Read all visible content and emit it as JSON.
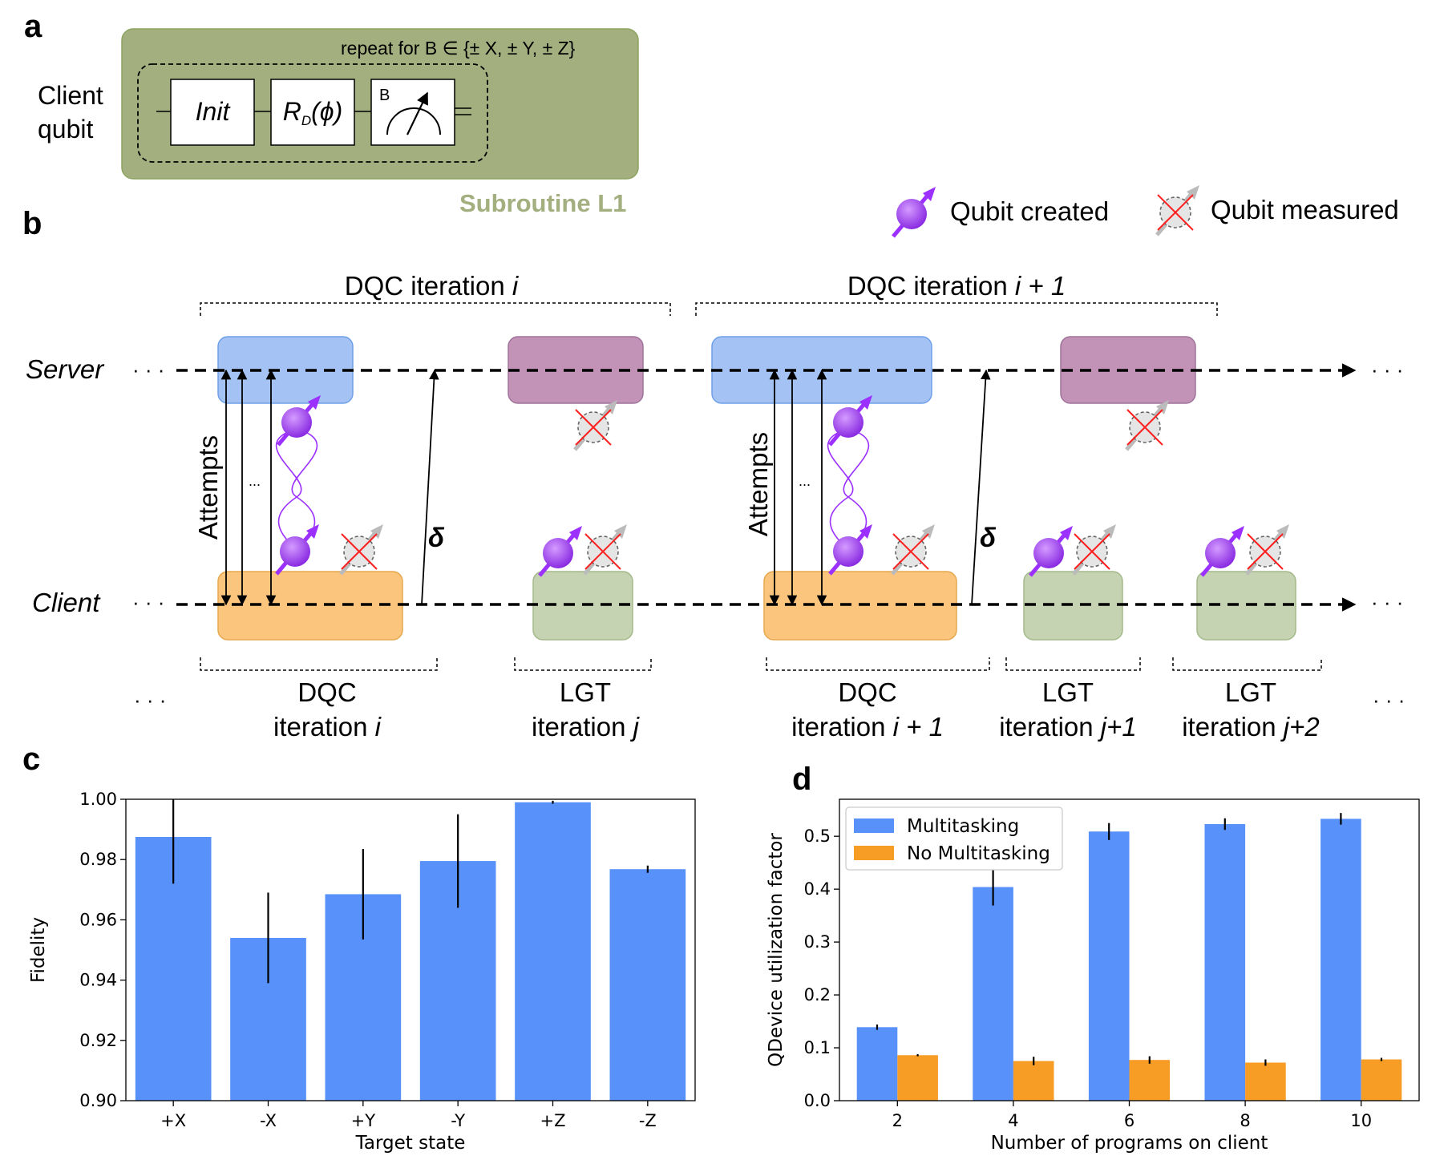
{
  "panels": {
    "a": "a",
    "b": "b",
    "c": "c",
    "d": "d"
  },
  "panel_a": {
    "qubit_label_1": "Client",
    "qubit_label_2": "qubit",
    "repeat_text": "repeat for B ∈ {± X, ± Y, ± Z}",
    "gate_init": "Init",
    "gate_rot_main": "R",
    "gate_rot_sub": "D",
    "gate_rot_arg": "(ϕ)",
    "gate_meas_basis": "B",
    "subroutine": "Subroutine L1",
    "colors": {
      "box": "#a3af7f",
      "box_border": "#8ea35f",
      "subroutine_text": "#a3af7f"
    }
  },
  "legend_top": {
    "created": "Qubit created",
    "measured": "Qubit measured"
  },
  "panel_b": {
    "server": "Server",
    "client": "Client",
    "ellipsis": "· · ·",
    "attempts": "Attempts",
    "delta": "δ",
    "dots": "...",
    "top_brackets": [
      {
        "text": "DQC iteration ",
        "var": "i"
      },
      {
        "text": "DQC iteration ",
        "var": "i + 1"
      }
    ],
    "bottom_brackets": [
      {
        "line1": "DQC",
        "line2": "iteration ",
        "var": "i"
      },
      {
        "line1": "LGT",
        "line2": "iteration ",
        "var": "j"
      },
      {
        "line1": "DQC",
        "line2": "iteration ",
        "var": "i + 1"
      },
      {
        "line1": "LGT",
        "line2": "iteration ",
        "var": "j+1"
      },
      {
        "line1": "LGT",
        "line2": "iteration ",
        "var": "j+2"
      }
    ],
    "colors": {
      "dqc_server": "#a4c2f4",
      "lgt_server": "#c293b7",
      "dqc_client": "#fcc57d",
      "lgt_client": "#c5d3b2",
      "qubit": "#9b30ff"
    }
  },
  "chart_data": [
    {
      "type": "bar",
      "panel": "c",
      "categories": [
        "+X",
        "-X",
        "+Y",
        "-Y",
        "+Z",
        "-Z"
      ],
      "values": [
        0.9875,
        0.954,
        0.9685,
        0.9795,
        0.999,
        0.9768
      ],
      "errors": [
        0.0155,
        0.015,
        0.015,
        0.0155,
        0.0005,
        0.0012
      ],
      "xlabel": "Target state",
      "ylabel": "Fidelity",
      "ylim": [
        0.9,
        1.0
      ],
      "yticks": [
        "0.90",
        "0.92",
        "0.94",
        "0.96",
        "0.98",
        "1.00"
      ],
      "color": "#5891fa",
      "grid": false
    },
    {
      "type": "bar",
      "panel": "d",
      "categories": [
        "2",
        "4",
        "6",
        "8",
        "10"
      ],
      "series": [
        {
          "name": "Multitasking",
          "values": [
            0.139,
            0.404,
            0.509,
            0.523,
            0.533
          ],
          "errors": [
            0.005,
            0.035,
            0.016,
            0.011,
            0.011
          ],
          "color": "#5891fa"
        },
        {
          "name": "No Multitasking",
          "values": [
            0.086,
            0.075,
            0.077,
            0.072,
            0.078
          ],
          "errors": [
            0.002,
            0.008,
            0.007,
            0.006,
            0.003
          ],
          "color": "#f79c25"
        }
      ],
      "xlabel": "Number of programs on client",
      "ylabel": "QDevice utilization factor",
      "ylim": [
        0.0,
        0.57
      ],
      "yticks": [
        "0.0",
        "0.1",
        "0.2",
        "0.3",
        "0.4",
        "0.5"
      ],
      "legend": "top-left",
      "grid": false
    }
  ]
}
